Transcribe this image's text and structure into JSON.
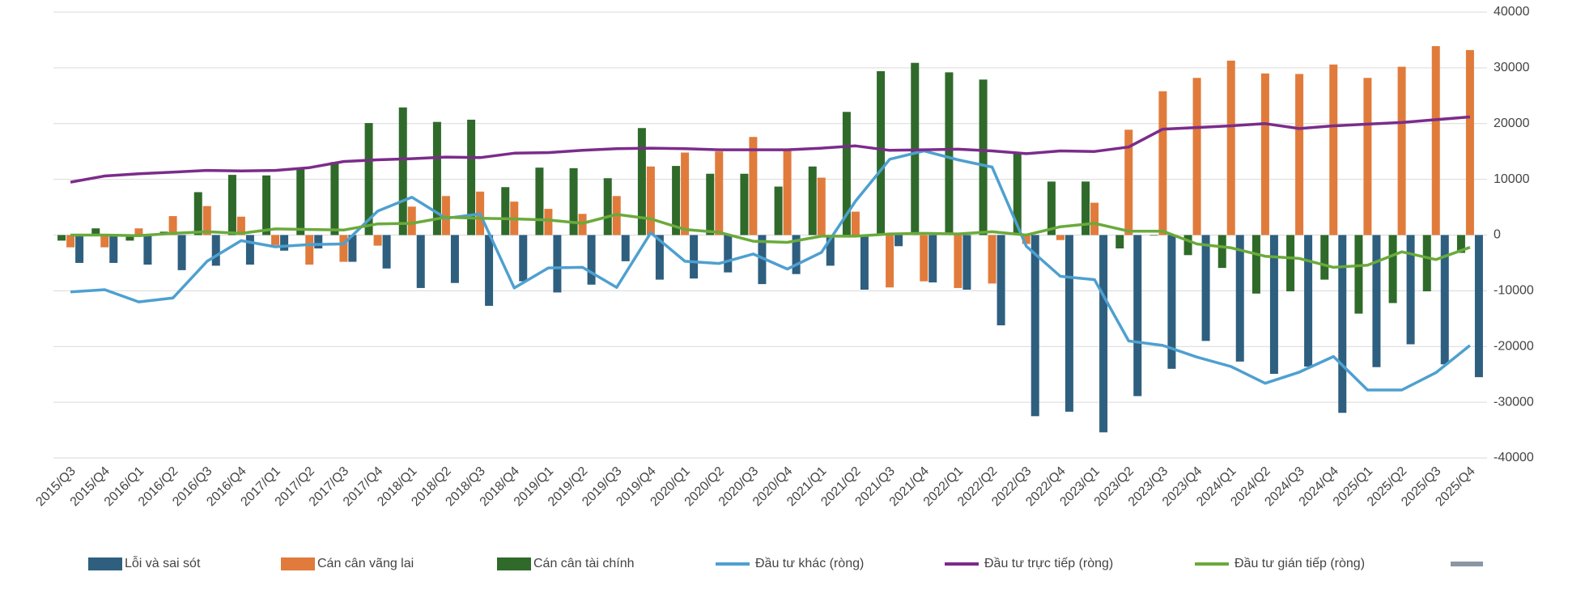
{
  "chart_data": {
    "type": "bar_line",
    "categories": [
      "2015/Q3",
      "2015/Q4",
      "2016/Q1",
      "2016/Q2",
      "2016/Q3",
      "2016/Q4",
      "2017/Q1",
      "2017/Q2",
      "2017/Q3",
      "2017/Q4",
      "2018/Q1",
      "2018/Q2",
      "2018/Q3",
      "2018/Q4",
      "2019/Q1",
      "2019/Q2",
      "2019/Q3",
      "2019/Q4",
      "2020/Q1",
      "2020/Q2",
      "2020/Q3",
      "2020/Q4",
      "2021/Q1",
      "2021/Q2",
      "2021/Q3",
      "2021/Q4",
      "2022/Q1",
      "2022/Q2",
      "2022/Q3",
      "2022/Q4",
      "2023/Q1",
      "2023/Q2",
      "2023/Q3",
      "2023/Q4",
      "2024/Q1",
      "2024/Q2",
      "2024/Q3",
      "2024/Q4",
      "2025/Q1",
      "2025/Q2",
      "2025/Q3",
      "2025/Q4"
    ],
    "series": [
      {
        "name": "Lỗi và sai sót",
        "kind": "bar",
        "color": "#2e5f7f",
        "values": [
          -5000,
          -5000,
          -5300,
          -6300,
          -5500,
          -5300,
          -2800,
          -2400,
          -4800,
          -6000,
          -9500,
          -8600,
          -12700,
          -8300,
          -10300,
          -8900,
          -4700,
          -8000,
          -7800,
          -6700,
          -8800,
          -7000,
          -5500,
          -9800,
          -2000,
          -8500,
          -9800,
          -16200,
          -32500,
          -31700,
          -35400,
          -28900,
          -24000,
          -19000,
          -22700,
          -24900,
          -23600,
          -31900,
          -23700,
          -19600,
          -23200,
          -25500
        ]
      },
      {
        "name": "Cán cân vãng lai",
        "kind": "bar",
        "color": "#e07b3c",
        "values": [
          -2200,
          -2200,
          1200,
          3400,
          5200,
          3300,
          -1800,
          -5300,
          -4800,
          -1900,
          5100,
          7000,
          7800,
          6000,
          4700,
          3800,
          7000,
          12300,
          14800,
          15000,
          17600,
          15200,
          10300,
          4200,
          -9400,
          -8300,
          -9500,
          -8700,
          -1600,
          -900,
          5800,
          18900,
          25800,
          28200,
          31300,
          29000,
          28900,
          30600,
          28200,
          30200,
          33900,
          33200
        ]
      },
      {
        "name": "Cán cân tài chính",
        "kind": "bar",
        "color": "#2f6a2a",
        "values": [
          -1000,
          1200,
          -1000,
          600,
          7700,
          10800,
          10700,
          12000,
          13100,
          20100,
          22900,
          20300,
          20700,
          8600,
          12100,
          12000,
          10200,
          19200,
          12400,
          11000,
          11000,
          8700,
          12300,
          22100,
          29400,
          30900,
          29200,
          27900,
          14600,
          9600,
          9600,
          -2400,
          -100,
          -3600,
          -5900,
          -10500,
          -10100,
          -8000,
          -14100,
          -12200,
          -10100,
          -3200
        ]
      },
      {
        "name": "Đầu tư khác (ròng)",
        "kind": "line",
        "color": "#4ea0d0",
        "values": [
          -10200,
          -9800,
          -12000,
          -11300,
          -4700,
          -1000,
          -2100,
          -1700,
          -1600,
          4300,
          6800,
          3000,
          3800,
          -9500,
          -5900,
          -5800,
          -9400,
          400,
          -4700,
          -5100,
          -3400,
          -6100,
          -3100,
          6100,
          13600,
          15100,
          13500,
          12200,
          -2000,
          -7400,
          -8000,
          -19000,
          -19800,
          -21900,
          -23600,
          -26600,
          -24600,
          -21800,
          -27800,
          -27800,
          -24700,
          -19800
        ]
      },
      {
        "name": "Đầu tư trực tiếp (ròng)",
        "kind": "line",
        "color": "#7b2c8a",
        "values": [
          9500,
          10600,
          11000,
          11300,
          11600,
          11500,
          11600,
          12100,
          13200,
          13500,
          13700,
          14000,
          13900,
          14700,
          14800,
          15200,
          15500,
          15600,
          15500,
          15300,
          15300,
          15300,
          15600,
          16000,
          15200,
          15300,
          15400,
          15100,
          14600,
          15100,
          15000,
          15800,
          19000,
          19300,
          19600,
          20000,
          19100,
          19600,
          19900,
          20200,
          20700,
          21200
        ]
      },
      {
        "name": "Đầu tư gián tiếp (ròng)",
        "kind": "line",
        "color": "#6aaa3c",
        "values": [
          0,
          0,
          -100,
          300,
          600,
          300,
          1100,
          1000,
          900,
          2000,
          2100,
          3200,
          3000,
          2900,
          2700,
          2100,
          3700,
          2900,
          1000,
          500,
          -1100,
          -1300,
          -200,
          -200,
          200,
          300,
          200,
          600,
          0,
          1500,
          2100,
          700,
          700,
          -1600,
          -2300,
          -3800,
          -4200,
          -5800,
          -5400,
          -3000,
          -4400,
          -2200
        ]
      }
    ],
    "ylim": [
      -40000,
      40000
    ],
    "yticks": [
      -40000,
      -30000,
      -20000,
      -10000,
      0,
      10000,
      20000,
      30000,
      40000
    ],
    "grid": true
  }
}
